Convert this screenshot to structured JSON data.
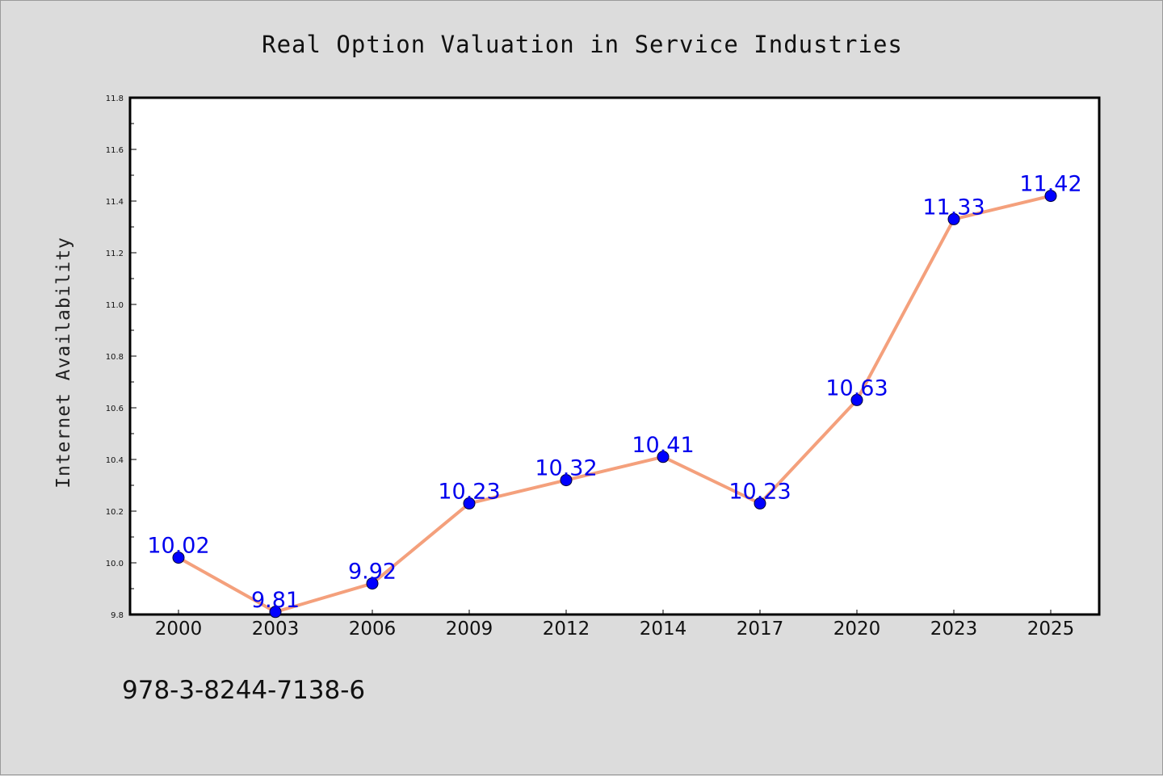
{
  "chart_data": {
    "type": "line",
    "title": "Real Option Valuation in Service Industries",
    "xlabel": "",
    "ylabel": "Internet Availability",
    "categories": [
      "2000",
      "2003",
      "2006",
      "2009",
      "2012",
      "2014",
      "2017",
      "2020",
      "2023",
      "2025"
    ],
    "series": [
      {
        "values": [
          10.02,
          9.81,
          9.92,
          10.23,
          10.32,
          10.41,
          10.23,
          10.63,
          11.33,
          11.42
        ],
        "labels": [
          "10.02",
          "9.81",
          "9.92",
          "10.23",
          "10.32",
          "10.41",
          "10.23",
          "10.63",
          "11.33",
          "11.42"
        ]
      }
    ],
    "ylim": [
      9.8,
      11.8
    ],
    "yticks": [
      "9.8",
      "10.0",
      "10.2",
      "10.4",
      "10.6",
      "10.8",
      "11.0",
      "11.2",
      "11.4",
      "11.6",
      "11.8"
    ],
    "grid": false,
    "legend": "none",
    "colors": {
      "line": "#f4a07c",
      "marker": "#0000ff",
      "data_label": "#0000ee",
      "plot_background": "#ffffff",
      "page_background": "#dcdcdc"
    }
  },
  "footer": {
    "isbn": "978-3-8244-7138-6"
  }
}
